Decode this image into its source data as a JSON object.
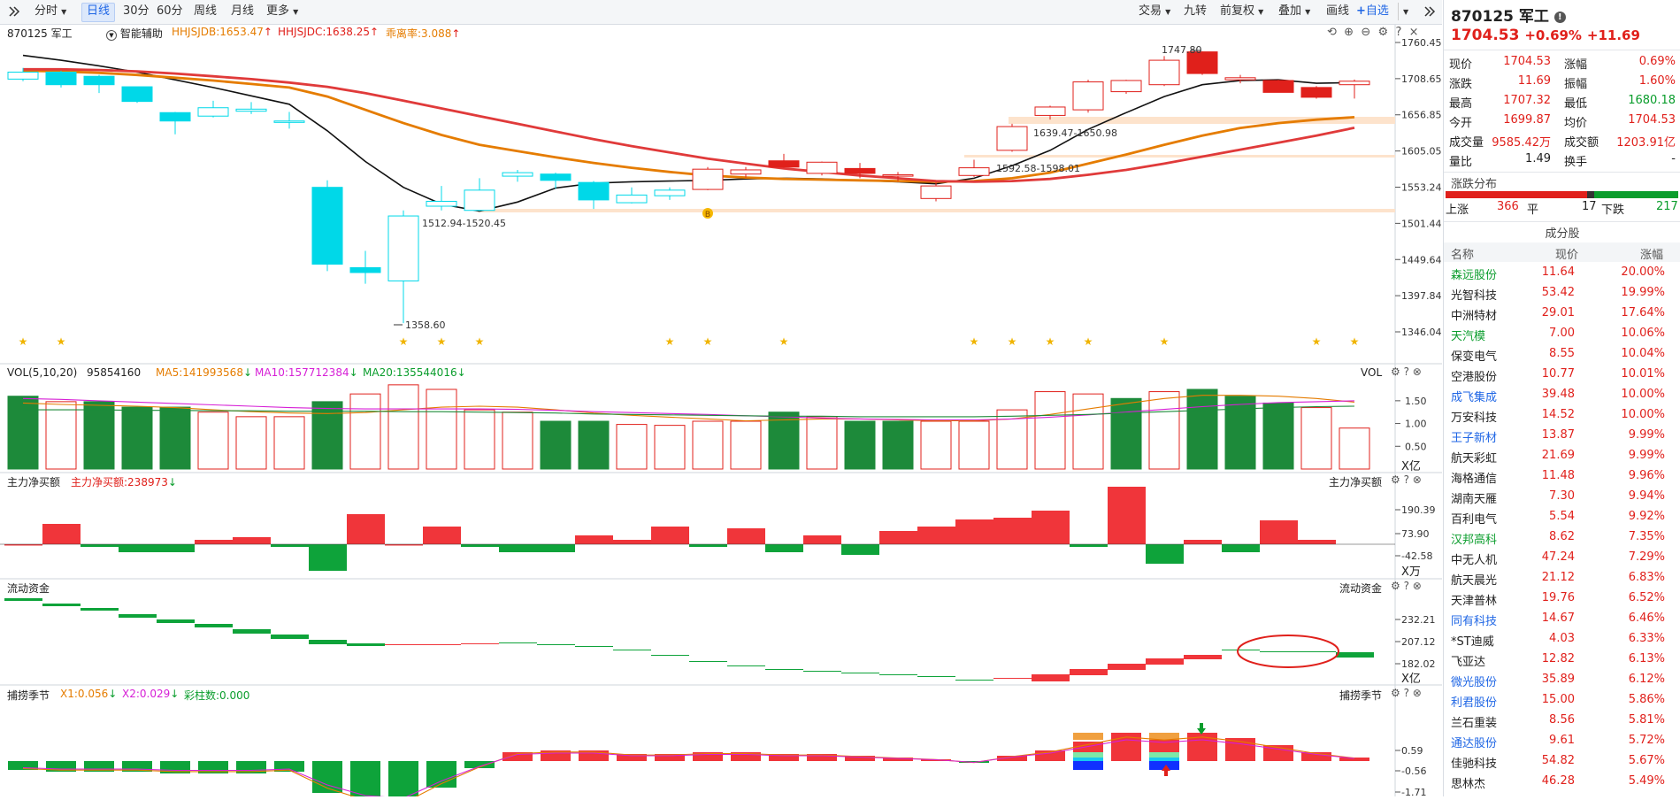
{
  "toolbar": {
    "expand_icon": "double-chevron-right",
    "tabs": [
      "分时",
      "日线",
      "30分",
      "60分",
      "周线",
      "月线",
      "更多"
    ],
    "active_tab": "日线",
    "right_items": [
      "交易",
      "九转",
      "前复权",
      "叠加",
      "画线",
      "自选"
    ],
    "collapse_icon": "double-chevron-right"
  },
  "main": {
    "stock_label": "870125 军工",
    "smart_assist": "智能辅助",
    "hhjsjdb": "HHJSJDB:1653.47",
    "hhjsjdc": "HHJSJDC:1638.25",
    "deviation": "乖离率:3.088",
    "y_ticks": [
      "1760.45",
      "1708.65",
      "1656.85",
      "1605.05",
      "1553.24",
      "1501.44",
      "1449.64",
      "1397.84",
      "1346.04"
    ],
    "annotations": [
      "1747.80",
      "1639.47-1650.98",
      "1592.58-1598.01",
      "1512.94-1520.45",
      "1358.60"
    ],
    "marker_b": "B"
  },
  "vol": {
    "title": "VOL(5,10,20)",
    "value": "95854160",
    "ma5": "MA5:141993568",
    "ma10": "MA10:157712384",
    "ma20": "MA20:135544016",
    "right_label": "VOL",
    "y_ticks": [
      "1.50",
      "1.00",
      "0.50"
    ],
    "unit": "X亿"
  },
  "netbuy": {
    "title": "主力净买额",
    "value": "主力净买额:238973",
    "right_label": "主力净买额",
    "y_ticks": [
      "190.39",
      "73.90",
      "-42.58"
    ],
    "unit": "X万"
  },
  "flow": {
    "title": "流动资金",
    "right_label": "流动资金",
    "y_ticks": [
      "232.21",
      "207.12",
      "182.02"
    ],
    "unit": "X亿"
  },
  "season": {
    "title": "捕捞季节",
    "x1": "X1:0.056",
    "x2": "X2:0.029",
    "bars": "彩柱数:0.000",
    "right_label": "捕捞季节",
    "y_ticks": [
      "0.59",
      "-0.56",
      "-1.71"
    ]
  },
  "quote": {
    "code_name": "870125 军工",
    "price": "1704.53",
    "change_pct": "+0.69%",
    "change": "+11.69",
    "rows": [
      [
        "现价",
        "1704.53",
        "涨幅",
        "0.69%"
      ],
      [
        "涨跌",
        "11.69",
        "振幅",
        "1.60%"
      ],
      [
        "最高",
        "1707.32",
        "最低",
        "1680.18"
      ],
      [
        "今开",
        "1699.87",
        "均价",
        "1704.53"
      ],
      [
        "成交量",
        "9585.42万",
        "成交额",
        "1203.91亿"
      ],
      [
        "量比",
        "1.49",
        "换手",
        "-"
      ]
    ],
    "dist_title": "涨跌分布",
    "up_label": "上涨",
    "up_count": "366",
    "flat_label": "平",
    "flat_count": "17",
    "down_label": "下跌",
    "down_count": "217",
    "components_title": "成分股",
    "col_headers": [
      "名称",
      "现价",
      "涨幅"
    ],
    "components": [
      {
        "name": "森远股份",
        "price": "11.64",
        "pct": "20.00%",
        "tag": "green"
      },
      {
        "name": "光智科技",
        "price": "53.42",
        "pct": "19.99%",
        "tag": "black"
      },
      {
        "name": "中洲特材",
        "price": "29.01",
        "pct": "17.64%",
        "tag": "black"
      },
      {
        "name": "天汽模",
        "price": "7.00",
        "pct": "10.06%",
        "tag": "green"
      },
      {
        "name": "保变电气",
        "price": "8.55",
        "pct": "10.04%",
        "tag": "black"
      },
      {
        "name": "空港股份",
        "price": "10.77",
        "pct": "10.01%",
        "tag": "black"
      },
      {
        "name": "成飞集成",
        "price": "39.48",
        "pct": "10.00%",
        "tag": "blue"
      },
      {
        "name": "万安科技",
        "price": "14.52",
        "pct": "10.00%",
        "tag": "black"
      },
      {
        "name": "王子新材",
        "price": "13.87",
        "pct": "9.99%",
        "tag": "blue"
      },
      {
        "name": "航天彩虹",
        "price": "21.69",
        "pct": "9.99%",
        "tag": "black"
      },
      {
        "name": "海格通信",
        "price": "11.48",
        "pct": "9.96%",
        "tag": "black"
      },
      {
        "name": "湖南天雁",
        "price": "7.30",
        "pct": "9.94%",
        "tag": "black"
      },
      {
        "name": "百利电气",
        "price": "5.54",
        "pct": "9.92%",
        "tag": "black"
      },
      {
        "name": "汉邦高科",
        "price": "8.62",
        "pct": "7.35%",
        "tag": "green"
      },
      {
        "name": "中无人机",
        "price": "47.24",
        "pct": "7.29%",
        "tag": "black"
      },
      {
        "name": "航天晨光",
        "price": "21.12",
        "pct": "6.83%",
        "tag": "black"
      },
      {
        "name": "天津普林",
        "price": "19.76",
        "pct": "6.52%",
        "tag": "black"
      },
      {
        "name": "同有科技",
        "price": "14.67",
        "pct": "6.46%",
        "tag": "blue"
      },
      {
        "name": "*ST迪威",
        "price": "4.03",
        "pct": "6.33%",
        "tag": "black"
      },
      {
        "name": "飞亚达",
        "price": "12.82",
        "pct": "6.13%",
        "tag": "black"
      },
      {
        "name": "微光股份",
        "price": "35.89",
        "pct": "6.12%",
        "tag": "blue"
      },
      {
        "name": "利君股份",
        "price": "15.00",
        "pct": "5.86%",
        "tag": "blue"
      },
      {
        "name": "兰石重装",
        "price": "8.56",
        "pct": "5.81%",
        "tag": "black"
      },
      {
        "name": "通达股份",
        "price": "9.61",
        "pct": "5.72%",
        "tag": "blue"
      },
      {
        "name": "佳驰科技",
        "price": "54.82",
        "pct": "5.67%",
        "tag": "black"
      },
      {
        "name": "思林杰",
        "price": "46.28",
        "pct": "5.49%",
        "tag": "black"
      }
    ]
  },
  "colors": {
    "up": "#e0201b",
    "down": "#0a9d2c",
    "cyan": "#00f0ff",
    "accent": "#1f66e5"
  },
  "chart_data": [
    {
      "type": "candlestick",
      "ylim": [
        1346.04,
        1760.45
      ],
      "candles": [
        {
          "open": 1708,
          "close": 1718,
          "high": 1724,
          "low": 1705,
          "dir": "up"
        },
        {
          "open": 1718,
          "close": 1700,
          "high": 1720,
          "low": 1696,
          "dir": "down"
        },
        {
          "open": 1712,
          "close": 1700,
          "high": 1714,
          "low": 1688,
          "dir": "down"
        },
        {
          "open": 1697,
          "close": 1676,
          "high": 1697,
          "low": 1674,
          "dir": "down"
        },
        {
          "open": 1660,
          "close": 1648,
          "high": 1661,
          "low": 1629,
          "dir": "down"
        },
        {
          "open": 1655,
          "close": 1667,
          "high": 1677,
          "low": 1653,
          "dir": "up"
        },
        {
          "open": 1662,
          "close": 1665,
          "high": 1675,
          "low": 1658,
          "dir": "up"
        },
        {
          "open": 1646,
          "close": 1648,
          "high": 1661,
          "low": 1637,
          "dir": "up"
        },
        {
          "open": 1553,
          "close": 1443,
          "high": 1563,
          "low": 1433,
          "dir": "down"
        },
        {
          "open": 1438,
          "close": 1431,
          "high": 1462,
          "low": 1415,
          "dir": "down"
        },
        {
          "open": 1419,
          "close": 1512,
          "high": 1520,
          "low": 1358.6,
          "dir": "up"
        },
        {
          "open": 1526,
          "close": 1533,
          "high": 1555,
          "low": 1520,
          "dir": "up"
        },
        {
          "open": 1520,
          "close": 1549,
          "high": 1566,
          "low": 1519,
          "dir": "up"
        },
        {
          "open": 1569,
          "close": 1574,
          "high": 1578,
          "low": 1561,
          "dir": "up"
        },
        {
          "open": 1572,
          "close": 1563,
          "high": 1574,
          "low": 1551,
          "dir": "down"
        },
        {
          "open": 1560,
          "close": 1535,
          "high": 1562,
          "low": 1522,
          "dir": "down"
        },
        {
          "open": 1531,
          "close": 1542,
          "high": 1553,
          "low": 1530,
          "dir": "up"
        },
        {
          "open": 1541,
          "close": 1549,
          "high": 1553,
          "low": 1535,
          "dir": "up"
        },
        {
          "open": 1550,
          "close": 1579,
          "high": 1582,
          "low": 1549,
          "dir": "up"
        },
        {
          "open": 1572,
          "close": 1578,
          "high": 1582,
          "low": 1567,
          "dir": "up"
        },
        {
          "open": 1582,
          "close": 1591,
          "high": 1601,
          "low": 1581,
          "dir": "up"
        },
        {
          "open": 1573,
          "close": 1589,
          "high": 1590,
          "low": 1570,
          "dir": "up"
        },
        {
          "open": 1573,
          "close": 1580,
          "high": 1588,
          "low": 1566,
          "dir": "up"
        },
        {
          "open": 1569,
          "close": 1571,
          "high": 1575,
          "low": 1562,
          "dir": "up"
        },
        {
          "open": 1537,
          "close": 1555,
          "high": 1560,
          "low": 1533,
          "dir": "up"
        },
        {
          "open": 1570,
          "close": 1581,
          "high": 1592.58,
          "low": 1568,
          "dir": "up"
        },
        {
          "open": 1606,
          "close": 1640,
          "high": 1644,
          "low": 1604,
          "dir": "up"
        },
        {
          "open": 1656,
          "close": 1668,
          "high": 1670,
          "low": 1650,
          "dir": "up"
        },
        {
          "open": 1664,
          "close": 1704,
          "high": 1707,
          "low": 1660,
          "dir": "up"
        },
        {
          "open": 1690,
          "close": 1706,
          "high": 1707,
          "low": 1687,
          "dir": "up"
        },
        {
          "open": 1700,
          "close": 1735,
          "high": 1741,
          "low": 1698,
          "dir": "up"
        },
        {
          "open": 1716,
          "close": 1747,
          "high": 1747.8,
          "low": 1714,
          "dir": "up"
        },
        {
          "open": 1707,
          "close": 1710,
          "high": 1714,
          "low": 1702,
          "dir": "up"
        },
        {
          "open": 1689,
          "close": 1706,
          "high": 1707,
          "low": 1689,
          "dir": "up"
        },
        {
          "open": 1682,
          "close": 1696,
          "high": 1698,
          "low": 1680,
          "dir": "up"
        },
        {
          "open": 1700,
          "close": 1705,
          "high": 1707.32,
          "low": 1680.18,
          "dir": "up"
        }
      ],
      "series": [
        {
          "values": [
            1742,
            1735,
            1727,
            1718,
            1707,
            1696,
            1684,
            1672,
            1634,
            1590,
            1553,
            1529,
            1519,
            1532,
            1552,
            1559,
            1561,
            1562,
            1563,
            1565,
            1566,
            1565,
            1563,
            1561,
            1558,
            1566,
            1584,
            1606,
            1636,
            1660,
            1683,
            1700,
            1706,
            1707,
            1702,
            1703
          ]
        },
        {
          "values": [
            1720,
            1719,
            1717,
            1714,
            1710,
            1706,
            1701,
            1696,
            1683,
            1664,
            1645,
            1628,
            1614,
            1605,
            1596,
            1588,
            1581,
            1575,
            1570,
            1567,
            1565,
            1564,
            1563,
            1562,
            1561,
            1562,
            1566,
            1574,
            1587,
            1600,
            1614,
            1627,
            1638,
            1645,
            1650,
            1653.47
          ]
        },
        {
          "values": [
            1722,
            1722,
            1721,
            1719,
            1716,
            1712,
            1708,
            1703,
            1697,
            1688,
            1677,
            1666,
            1655,
            1644,
            1633,
            1622,
            1612,
            1603,
            1594,
            1587,
            1580,
            1575,
            1570,
            1566,
            1562,
            1561,
            1562,
            1565,
            1571,
            1578,
            1587,
            1597,
            1607,
            1617,
            1627,
            1638.25
          ]
        }
      ]
    }
  ]
}
